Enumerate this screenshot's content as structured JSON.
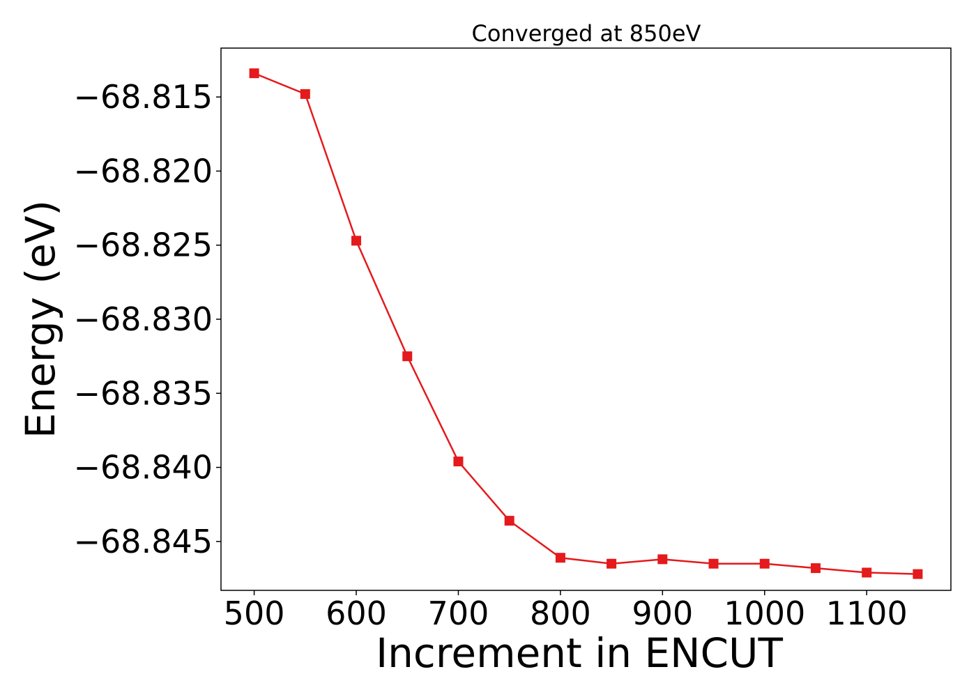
{
  "chart_data": {
    "type": "line",
    "title": "Converged at 850eV",
    "xlabel": "Increment in ENCUT",
    "ylabel": "Energy (eV)",
    "xlim": [
      467.5,
      1182.5
    ],
    "ylim": [
      -68.8483,
      -68.8117
    ],
    "xticks": [
      500,
      600,
      700,
      800,
      900,
      1000,
      1100
    ],
    "xtick_labels": [
      "500",
      "600",
      "700",
      "800",
      "900",
      "1000",
      "1100"
    ],
    "yticks": [
      -68.815,
      -68.82,
      -68.825,
      -68.83,
      -68.835,
      -68.84,
      -68.845
    ],
    "ytick_labels": [
      "−68.815",
      "−68.820",
      "−68.825",
      "−68.830",
      "−68.835",
      "−68.840",
      "−68.845"
    ],
    "grid": false,
    "series": [
      {
        "color": "#e41a1c",
        "marker": "square",
        "x": [
          500,
          550,
          600,
          650,
          700,
          750,
          800,
          850,
          900,
          950,
          1000,
          1050,
          1100,
          1150
        ],
        "y": [
          -68.8134,
          -68.8148,
          -68.8247,
          -68.8325,
          -68.8396,
          -68.8436,
          -68.8461,
          -68.8465,
          -68.8462,
          -68.8465,
          -68.8465,
          -68.8468,
          -68.8471,
          -68.8472
        ]
      }
    ]
  }
}
